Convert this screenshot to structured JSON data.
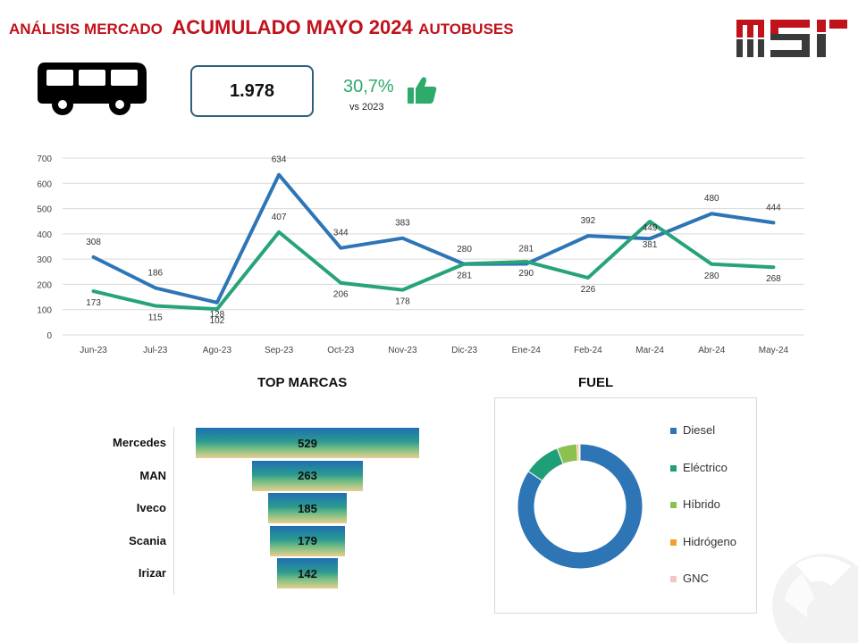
{
  "header": {
    "prefix": "ANÁLISIS MERCADO",
    "highlight": "ACUMULADO MAYO 2024",
    "suffix": "AUTOBUSES"
  },
  "logo": {
    "text": "MSI"
  },
  "kpi": {
    "total": "1.978",
    "growth": "30,7%",
    "growth_sub": "vs 2023"
  },
  "icons": {
    "vehicle": "bus-icon",
    "growth": "thumbs-up-icon"
  },
  "colors": {
    "title_red": "#c0121b",
    "series_blue": "#2e75b6",
    "series_green": "#26a37a",
    "growth_green": "#2eaa6b"
  },
  "chart_data": [
    {
      "type": "line",
      "categories": [
        "Jun-23",
        "Jul-23",
        "Ago-23",
        "Sep-23",
        "Oct-23",
        "Nov-23",
        "Dic-23",
        "Ene-24",
        "Feb-24",
        "Mar-24",
        "Abr-24",
        "May-24"
      ],
      "series": [
        {
          "color": "#2e75b6",
          "values": [
            308,
            186,
            128,
            634,
            344,
            383,
            280,
            281,
            392,
            381,
            480,
            444
          ]
        },
        {
          "color": "#26a37a",
          "values": [
            173,
            115,
            102,
            407,
            206,
            178,
            281,
            290,
            226,
            449,
            280,
            268
          ]
        }
      ],
      "ylim": [
        0,
        700
      ],
      "yticks": [
        0,
        100,
        200,
        300,
        400,
        500,
        600,
        700
      ],
      "grid": true,
      "data_labels": true
    },
    {
      "type": "bar",
      "title": "TOP MARCAS",
      "categories": [
        "Mercedes",
        "MAN",
        "Iveco",
        "Scania",
        "Irizar"
      ],
      "values": [
        529,
        263,
        185,
        179,
        142
      ],
      "orientation": "horizontal-centered"
    },
    {
      "type": "pie",
      "title": "FUEL",
      "donut": true,
      "labels": [
        "Diesel",
        "Eléctrico",
        "Híbrido",
        "Hidrógeno",
        "GNC"
      ],
      "values": [
        84.5,
        9.5,
        5.2,
        0.5,
        0.3
      ],
      "colors": [
        "#2e75b6",
        "#1f9e78",
        "#8cc152",
        "#f0a030",
        "#f4c7c3"
      ],
      "legend": "right"
    }
  ]
}
